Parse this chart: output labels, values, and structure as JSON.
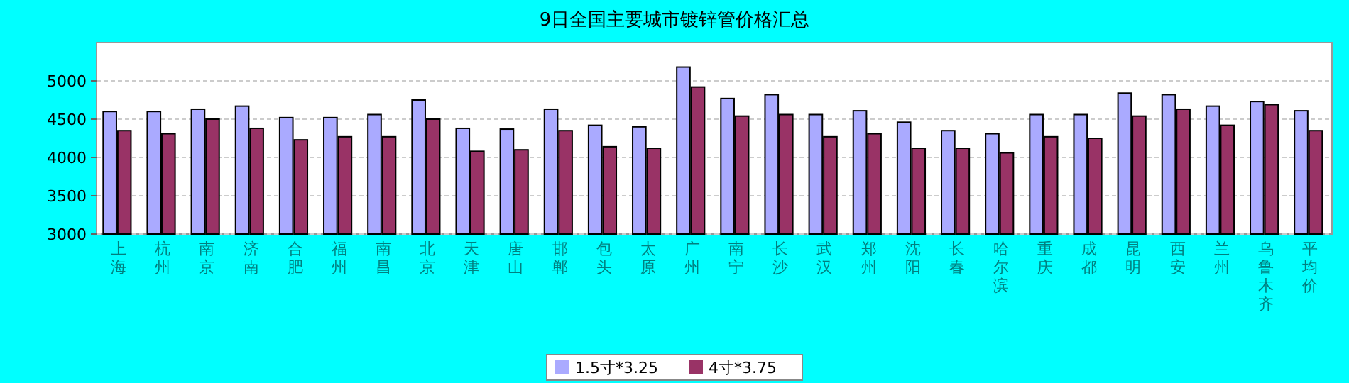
{
  "chart_data": {
    "type": "bar",
    "title": "9日全国主要城市镀锌管价格汇总",
    "categories": [
      "上海",
      "杭州",
      "南京",
      "济南",
      "合肥",
      "福州",
      "南昌",
      "北京",
      "天津",
      "唐山",
      "邯郸",
      "包头",
      "太原",
      "广州",
      "南宁",
      "长沙",
      "武汉",
      "郑州",
      "沈阳",
      "长春",
      "哈尔滨",
      "重庆",
      "成都",
      "昆明",
      "西安",
      "兰州",
      "乌鲁木齐",
      "平均价"
    ],
    "series": [
      {
        "name": "1.5寸*3.25",
        "color": "#aaaaff",
        "values": [
          4600,
          4600,
          4630,
          4670,
          4520,
          4520,
          4560,
          4750,
          4380,
          4370,
          4630,
          4420,
          4400,
          5180,
          4770,
          4820,
          4560,
          4610,
          4460,
          4350,
          4310,
          4560,
          4560,
          4840,
          4820,
          4670,
          4730,
          4610
        ]
      },
      {
        "name": "4寸*3.75",
        "color": "#993366",
        "values": [
          4350,
          4310,
          4500,
          4380,
          4230,
          4270,
          4270,
          4500,
          4080,
          4100,
          4350,
          4140,
          4120,
          4920,
          4540,
          4560,
          4270,
          4310,
          4120,
          4120,
          4060,
          4270,
          4250,
          4540,
          4630,
          4420,
          4690,
          4350
        ]
      }
    ],
    "ylim": [
      3000,
      5500
    ],
    "yticks": [
      3000,
      3500,
      4000,
      4500,
      5000
    ],
    "grid": "y",
    "legend": "bottom"
  }
}
